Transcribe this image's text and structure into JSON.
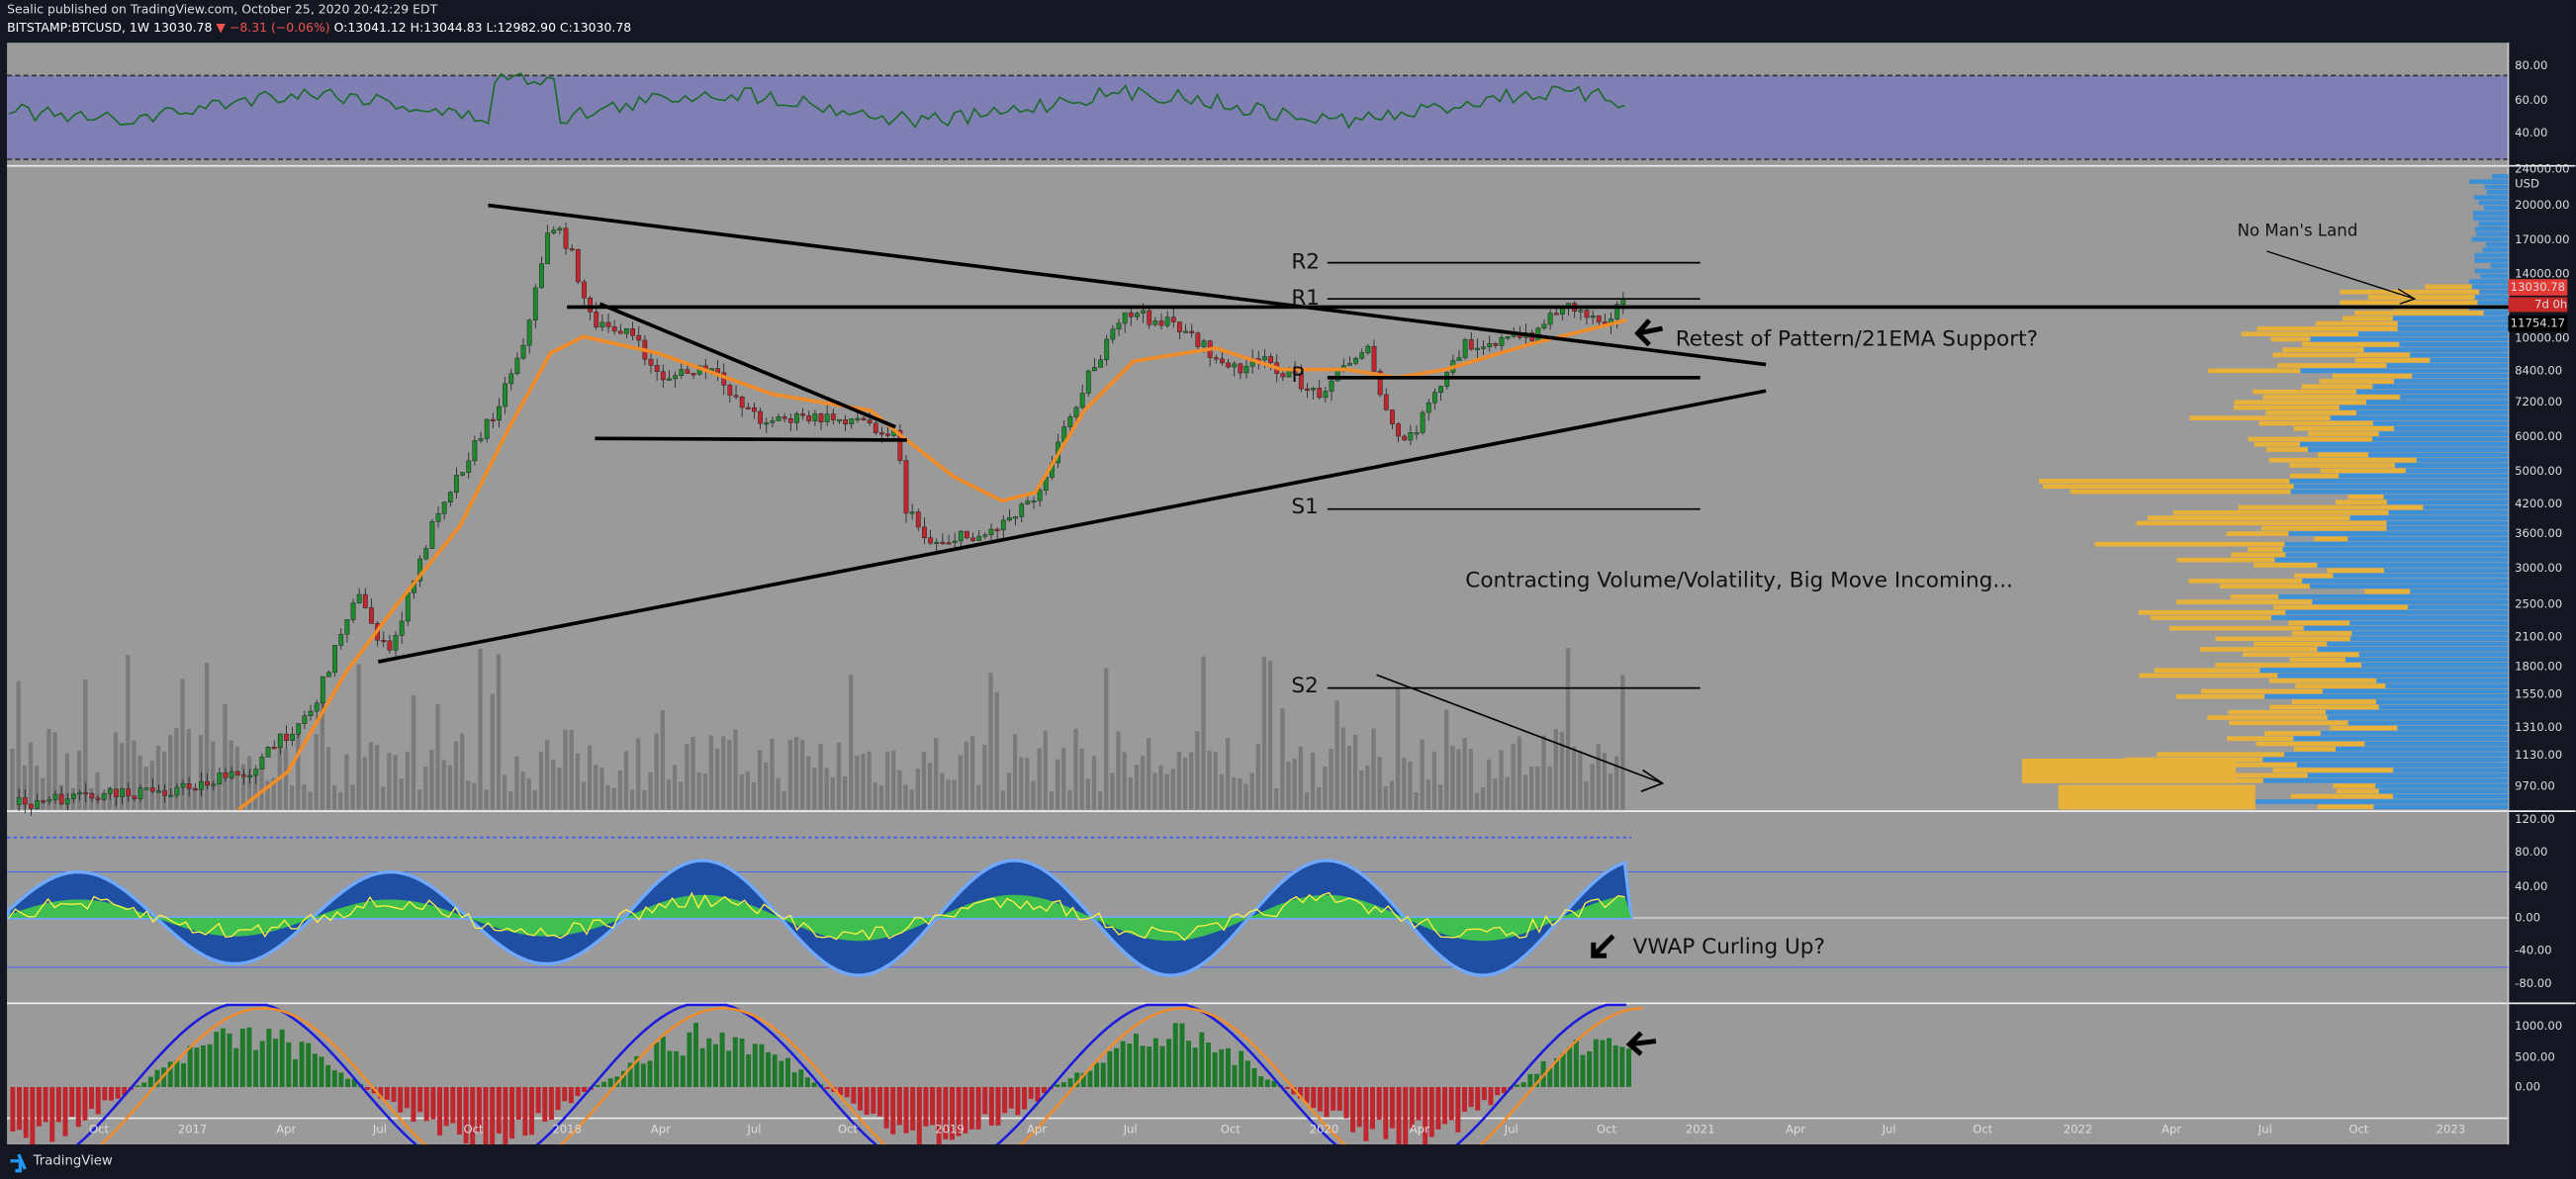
{
  "header": {
    "publisher": "Sealic published on TradingView.com, October 25, 2020 20:42:29 EDT",
    "symbol": "BITSTAMP:BTCUSD, 1W",
    "last": "13030.78",
    "change": "▼ −8.31 (−0.06%)",
    "ohlc": "O:13041.12 H:13044.83 L:12982.90 C:13030.78"
  },
  "rsi_axis": [
    "80.00",
    "60.00",
    "40.00"
  ],
  "price_axis": [
    "24000.00",
    "USD",
    "20000.00",
    "17000.00",
    "14000.00",
    "10000.00",
    "8400.00",
    "7200.00",
    "6000.00",
    "5000.00",
    "4200.00",
    "3600.00",
    "3000.00",
    "2500.00",
    "2100.00",
    "1800.00",
    "1550.00",
    "1310.00",
    "1130.00",
    "970.00"
  ],
  "badges": {
    "last_price": "13030.78",
    "countdown": "7d 0h",
    "level": "11754.17"
  },
  "wave_axis": [
    "120.00",
    "80.00",
    "40.00",
    "0.00",
    "-40.00",
    "-80.00"
  ],
  "macd_axis": [
    "1000.00",
    "500.00",
    "0.00"
  ],
  "time_axis": [
    "Oct",
    "2017",
    "Apr",
    "Jul",
    "Oct",
    "2018",
    "Apr",
    "Jul",
    "Oct",
    "2019",
    "Apr",
    "Jul",
    "Oct",
    "2020",
    "Apr",
    "Jul",
    "Oct",
    "2021",
    "Apr",
    "Jul",
    "Oct",
    "2022",
    "Apr",
    "Jul",
    "Oct",
    "2023"
  ],
  "annotations": {
    "r2": "R2",
    "r1": "R1",
    "p": "P",
    "s1": "S1",
    "s2": "S2",
    "no_mans_land": "No Man's Land",
    "retest": "Retest of Pattern/21EMA Support?",
    "contracting": "Contracting Volume/Volatility, Big Move Incoming...",
    "vwap": "VWAP Curling Up?"
  },
  "footer": "TradingView"
}
